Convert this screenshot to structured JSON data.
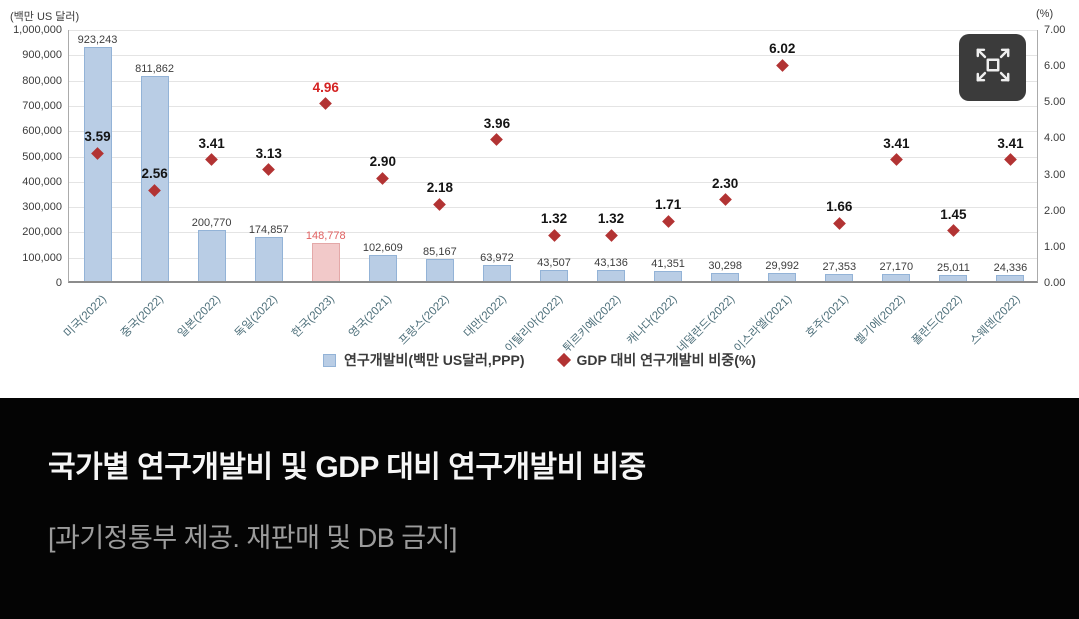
{
  "chart_data": {
    "type": "bar",
    "title": "국가별 연구개발비 및 GDP 대비 연구개발비 비중",
    "categories": [
      "미국(2022)",
      "중국(2022)",
      "일본(2022)",
      "독일(2022)",
      "한국(2023)",
      "영국(2021)",
      "프랑스(2022)",
      "대만(2022)",
      "이탈리아(2022)",
      "튀르키예(2022)",
      "캐나다(2022)",
      "네덜란드(2022)",
      "이스라엘(2021)",
      "호주(2021)",
      "벨기에(2022)",
      "폴란드(2022)",
      "스웨덴(2022)"
    ],
    "series": [
      {
        "name": "연구개발비(백만 US달러,PPP)",
        "type": "bar",
        "axis": "left",
        "values": [
          923243,
          811862,
          200770,
          174857,
          148778,
          102609,
          85167,
          63972,
          43507,
          43136,
          41351,
          30298,
          29992,
          27353,
          27170,
          25011,
          24336
        ]
      },
      {
        "name": "GDP 대비 연구개발비 비중(%)",
        "type": "scatter",
        "axis": "right",
        "values": [
          3.59,
          2.56,
          3.41,
          3.13,
          4.96,
          2.9,
          2.18,
          3.96,
          1.32,
          1.32,
          1.71,
          2.3,
          6.02,
          1.66,
          3.41,
          1.45,
          3.41
        ]
      }
    ],
    "left_axis": {
      "label": "(백만 US 달러)",
      "min": 0,
      "max": 1000000,
      "step": 100000,
      "tick_labels": [
        "0",
        "100,000",
        "200,000",
        "300,000",
        "400,000",
        "500,000",
        "600,000",
        "700,000",
        "800,000",
        "900,000",
        "1,000,000"
      ]
    },
    "right_axis": {
      "label": "(%)",
      "min": 0,
      "max": 7,
      "step": 1,
      "tick_labels": [
        "0.00",
        "1.00",
        "2.00",
        "3.00",
        "4.00",
        "5.00",
        "6.00",
        "7.00"
      ]
    },
    "highlight_index": 4,
    "legend_position": "bottom",
    "grid": true,
    "colors": {
      "bar": "#b9cde5",
      "bar_border": "#93b3d7",
      "bar_highlight": "#f2c9c9",
      "bar_highlight_border": "#e4a8a8",
      "marker": "#b23333",
      "bar_label": "#3d3d3d",
      "bar_label_highlight": "#e05f5f",
      "marker_label": "#141414",
      "marker_label_highlight": "#d42222"
    }
  },
  "icons": {
    "expand": "expand-fullscreen-icon"
  },
  "caption": {
    "title": "국가별 연구개발비 및 GDP 대비 연구개발비 비중",
    "source": "[과기정통부 제공. 재판매 및 DB 금지]"
  }
}
